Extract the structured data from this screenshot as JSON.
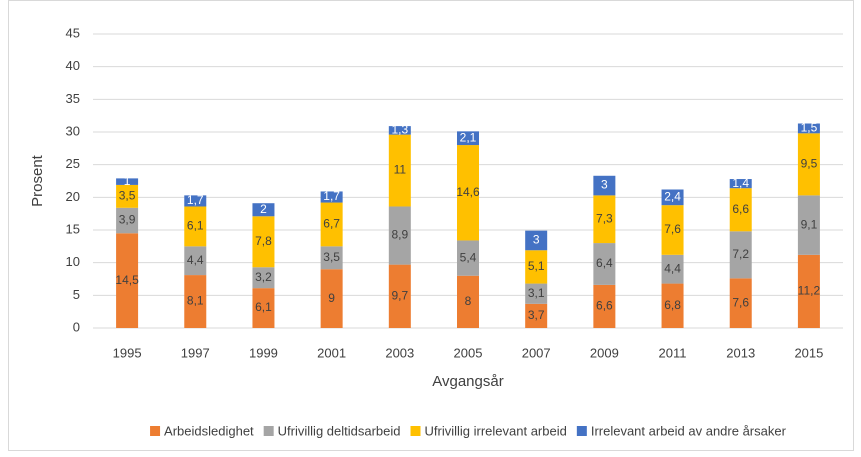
{
  "chart_data": {
    "type": "stacked_bar",
    "x_label": "Avgangsår",
    "y_label": "Prosent",
    "categories": [
      "1995",
      "1997",
      "1999",
      "2001",
      "2003",
      "2005",
      "2007",
      "2009",
      "2011",
      "2013",
      "2015"
    ],
    "series": [
      {
        "name": "Arbeidsledighet",
        "color": "#ed7d31",
        "label_color": "#404040",
        "values": [
          14.5,
          8.1,
          6.1,
          9,
          9.7,
          8,
          3.7,
          6.6,
          6.8,
          7.6,
          11.2
        ],
        "value_labels": [
          "14,5",
          "8,1",
          "6,1",
          "9",
          "9,7",
          "8",
          "3,7",
          "6,6",
          "6,8",
          "7,6",
          "11,2"
        ]
      },
      {
        "name": "Ufrivillig deltidsarbeid",
        "color": "#a5a5a5",
        "label_color": "#404040",
        "values": [
          3.9,
          4.4,
          3.2,
          3.5,
          8.9,
          5.4,
          3.1,
          6.4,
          4.4,
          7.2,
          9.1
        ],
        "value_labels": [
          "3,9",
          "4,4",
          "3,2",
          "3,5",
          "8,9",
          "5,4",
          "3,1",
          "6,4",
          "4,4",
          "7,2",
          "9,1"
        ]
      },
      {
        "name": "Ufrivillig irrelevant arbeid",
        "color": "#ffc000",
        "label_color": "#404040",
        "values": [
          3.5,
          6.1,
          7.8,
          6.7,
          11,
          14.6,
          5.1,
          7.3,
          7.6,
          6.6,
          9.5
        ],
        "value_labels": [
          "3,5",
          "6,1",
          "7,8",
          "6,7",
          "11",
          "14,6",
          "5,1",
          "7,3",
          "7,6",
          "6,6",
          "9,5"
        ]
      },
      {
        "name": "Irrelevant arbeid av andre årsaker",
        "color": "#4472c4",
        "label_color": "#ffffff",
        "values": [
          1,
          1.7,
          2,
          1.7,
          1.3,
          2.1,
          3,
          3,
          2.4,
          1.4,
          1.5
        ],
        "value_labels": [
          "1",
          "1,7",
          "2",
          "1,7",
          "1,3",
          "2,1",
          "3",
          "3",
          "2,4",
          "1,4",
          "1,5"
        ]
      }
    ],
    "ylim": [
      0,
      45
    ],
    "yticks": [
      0,
      5,
      10,
      15,
      20,
      25,
      30,
      35,
      40,
      45
    ],
    "grid": true,
    "legend": "bottom"
  }
}
